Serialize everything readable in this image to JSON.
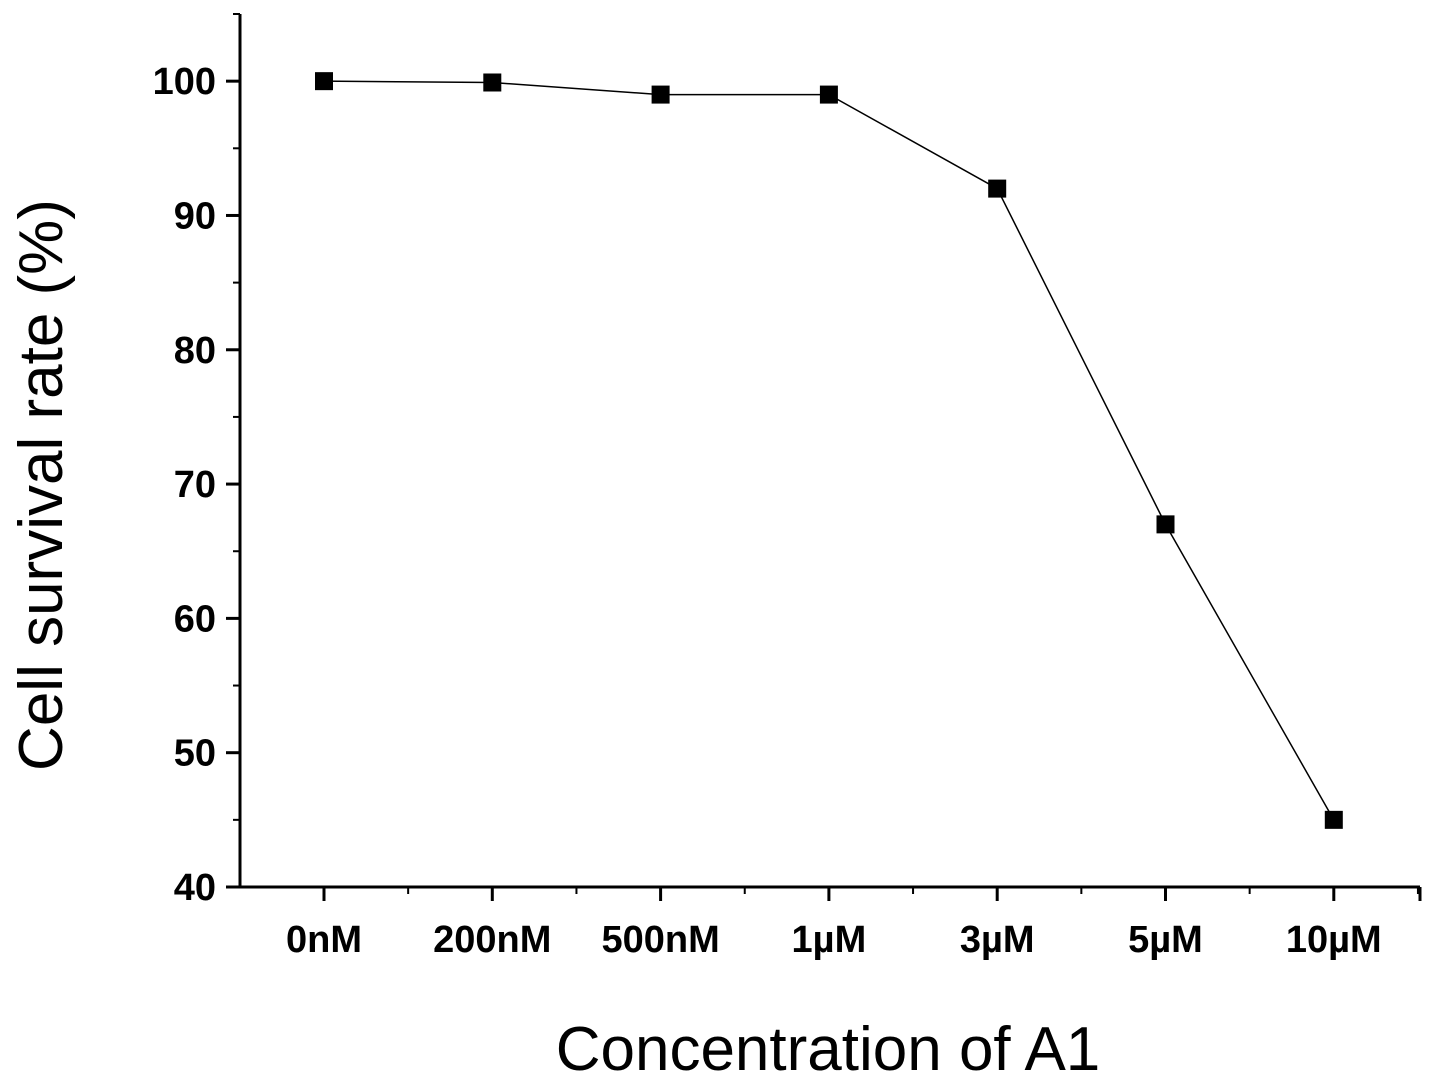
{
  "chart_data": {
    "type": "line",
    "title": "",
    "xlabel": "Concentration of A1",
    "ylabel": "Cell survival rate (%)",
    "categories": [
      "0nM",
      "200nM",
      "500nM",
      "1µM",
      "3µM",
      "5µM",
      "10µM"
    ],
    "series": [
      {
        "values": [
          100,
          99.9,
          99,
          99,
          92,
          67,
          45
        ],
        "marker": "square"
      }
    ],
    "ylim": [
      40,
      105
    ],
    "yticks": [
      40,
      50,
      60,
      70,
      80,
      90,
      100
    ],
    "grid": false,
    "legend": "none",
    "colors": {
      "line": "#000000",
      "marker": "#000000",
      "axis": "#000000"
    }
  }
}
